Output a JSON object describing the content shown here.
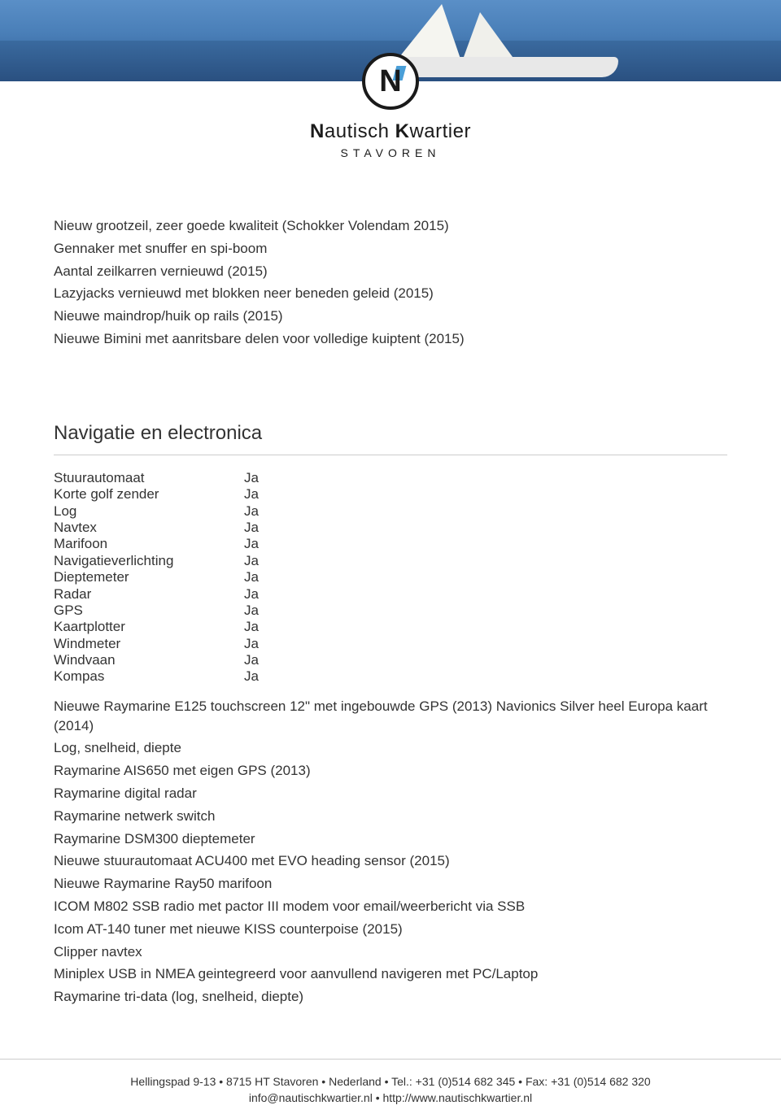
{
  "logo": {
    "main_prefix_bold": "N",
    "main_prefix_rest": "autisch ",
    "main_suffix_bold": "K",
    "main_suffix_rest": "wartier",
    "sub": "STAVOREN"
  },
  "intro_items": [
    "Nieuw grootzeil, zeer goede kwaliteit (Schokker Volendam 2015)",
    "Gennaker met snuffer en spi-boom",
    "Aantal zeilkarren vernieuwd (2015)",
    "Lazyjacks vernieuwd met blokken neer beneden geleid (2015)",
    "Nieuwe maindrop/huik op rails (2015)",
    "Nieuwe Bimini met aanritsbare delen voor volledige kuiptent (2015)"
  ],
  "section": {
    "title": "Navigatie en electronica",
    "specs": [
      {
        "label": "Stuurautomaat",
        "value": "Ja"
      },
      {
        "label": "Korte golf zender",
        "value": "Ja"
      },
      {
        "label": "Log",
        "value": "Ja"
      },
      {
        "label": "Navtex",
        "value": "Ja"
      },
      {
        "label": "Marifoon",
        "value": "Ja"
      },
      {
        "label": "Navigatieverlichting",
        "value": "Ja"
      },
      {
        "label": "Dieptemeter",
        "value": "Ja"
      },
      {
        "label": "Radar",
        "value": "Ja"
      },
      {
        "label": "GPS",
        "value": "Ja"
      },
      {
        "label": "Kaartplotter",
        "value": "Ja"
      },
      {
        "label": "Windmeter",
        "value": "Ja"
      },
      {
        "label": "Windvaan",
        "value": "Ja"
      },
      {
        "label": "Kompas",
        "value": "Ja"
      }
    ],
    "details": [
      "Nieuwe Raymarine E125 touchscreen 12\" met ingebouwde GPS (2013) Navionics Silver heel Europa kaart (2014)",
      "Log, snelheid, diepte",
      "Raymarine AIS650 met eigen GPS (2013)",
      "Raymarine digital radar",
      "Raymarine netwerk switch",
      "Raymarine DSM300 dieptemeter",
      "Nieuwe stuurautomaat ACU400 met EVO heading sensor (2015)",
      "Nieuwe Raymarine Ray50 marifoon",
      "ICOM M802 SSB radio met pactor III modem voor email/weerbericht via SSB",
      "Icom AT-140 tuner met nieuwe KISS counterpoise (2015)",
      "Clipper navtex",
      "Miniplex USB in NMEA geintegreerd voor aanvullend navigeren met PC/Laptop",
      "Raymarine tri-data (log, snelheid, diepte)"
    ]
  },
  "footer": {
    "line1": "Hellingspad 9-13 • 8715 HT Stavoren • Nederland • Tel.: +31 (0)514 682 345 • Fax: +31 (0)514 682 320",
    "line2": "info@nautischkwartier.nl • http://www.nautischkwartier.nl"
  },
  "styling": {
    "body_width": 960,
    "text_color": "#333333",
    "divider_color": "#cccccc",
    "background_color": "#ffffff",
    "logo_accent_color": "#4a9fd8",
    "spec_label_width": 234,
    "intro_fontsize": 17,
    "section_title_fontsize": 24,
    "footer_fontsize": 14
  }
}
